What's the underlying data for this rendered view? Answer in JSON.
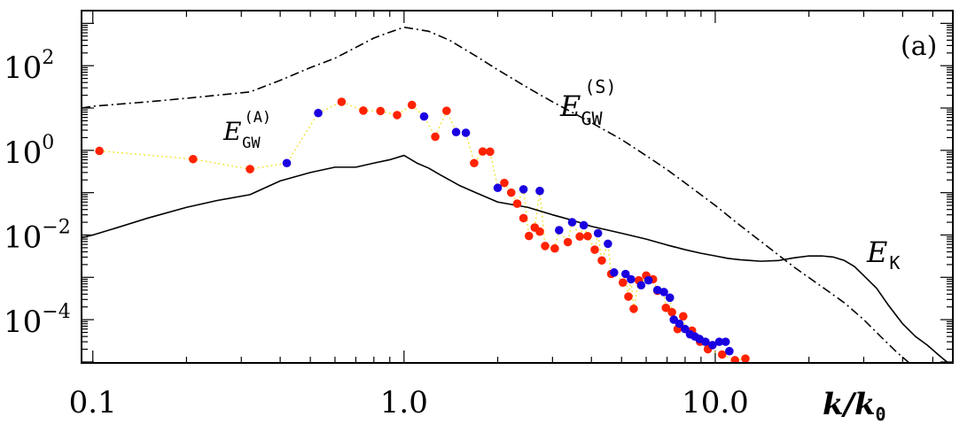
{
  "chart_data": {
    "type": "line",
    "panel_label": "(a)",
    "xlabel": {
      "main": "k",
      "sep": "/",
      "main2": "k",
      "sub": "0"
    },
    "xscale": "log",
    "yscale": "log",
    "xlim": [
      0.092,
      58
    ],
    "ylim": [
      9.5e-06,
      2000
    ],
    "x_ticks": [
      {
        "value": 0.1,
        "label": "0.1"
      },
      {
        "value": 1.0,
        "label": "1.0"
      },
      {
        "value": 10.0,
        "label": "10.0"
      }
    ],
    "y_ticks": [
      {
        "value": 100,
        "base": "10",
        "exp": "2"
      },
      {
        "value": 1,
        "base": "10",
        "exp": "0"
      },
      {
        "value": 0.01,
        "base": "10",
        "exp": "−2"
      },
      {
        "value": 0.0001,
        "base": "10",
        "exp": "−4"
      }
    ],
    "annotations": {
      "ek": {
        "main": "E",
        "sub": "K"
      },
      "egw_s": {
        "main": "E",
        "sub": "GW",
        "sup": "(S)"
      },
      "egw_a": {
        "main": "E",
        "sub": "GW",
        "sup": "(A)"
      }
    },
    "series": [
      {
        "key": "ek",
        "style": "solid",
        "color": "#000000",
        "x": [
          0.092,
          0.1,
          0.12,
          0.15,
          0.2,
          0.25,
          0.32,
          0.4,
          0.5,
          0.6,
          0.7,
          0.8,
          0.9,
          1.0,
          1.1,
          1.2,
          1.3,
          1.4,
          1.5,
          1.7,
          2.0,
          2.5,
          3.0,
          3.5,
          4.0,
          5.0,
          6.0,
          7.0,
          8.0,
          9.0,
          10.0,
          11.0,
          12.0,
          13.0,
          14.0,
          16.0,
          18.0,
          20.0,
          22.0,
          24.0,
          26.0,
          28.0,
          30.0,
          33.0,
          36.0,
          40.0,
          44.0,
          48.0,
          52.0,
          56.0
        ],
        "y": [
          0.0086,
          0.01,
          0.015,
          0.025,
          0.045,
          0.065,
          0.09,
          0.19,
          0.3,
          0.4,
          0.4,
          0.5,
          0.6,
          0.76,
          0.5,
          0.38,
          0.27,
          0.2,
          0.15,
          0.1,
          0.06,
          0.045,
          0.03,
          0.022,
          0.016,
          0.011,
          0.008,
          0.0058,
          0.0045,
          0.0037,
          0.0032,
          0.0028,
          0.0026,
          0.0025,
          0.0024,
          0.0025,
          0.0029,
          0.0032,
          0.0032,
          0.003,
          0.0025,
          0.0018,
          0.0011,
          0.00055,
          0.00022,
          8e-05,
          4e-05,
          2.5e-05,
          1.5e-05,
          9.5e-06
        ]
      },
      {
        "key": "egw_s",
        "style": "dashdot",
        "color": "#000000",
        "x": [
          0.092,
          0.1,
          0.15,
          0.2,
          0.25,
          0.32,
          0.4,
          0.5,
          0.6,
          0.7,
          0.8,
          0.9,
          1.0,
          1.2,
          1.4,
          1.7,
          2.0,
          2.5,
          3.0,
          4.0,
          5.0,
          6.0,
          7.0,
          8.0,
          10.0,
          12.0,
          15.0,
          18.0,
          22.0,
          26.0,
          30.0,
          34.0,
          38.0,
          42.0
        ],
        "y": [
          10,
          11,
          14,
          17,
          20,
          24,
          45,
          90,
          150,
          270,
          450,
          620,
          810,
          650,
          400,
          170,
          80,
          30,
          14,
          4.5,
          1.8,
          0.75,
          0.35,
          0.17,
          0.05,
          0.017,
          0.0048,
          0.0017,
          0.0006,
          0.00025,
          0.0001,
          4e-05,
          1.8e-05,
          9.5e-06
        ]
      },
      {
        "key": "egw_a_red",
        "style": "markers",
        "color": "#ff2200",
        "x": [
          0.105,
          0.21,
          0.32,
          0.63,
          0.74,
          0.84,
          0.95,
          1.06,
          1.26,
          1.37,
          1.68,
          1.79,
          1.89,
          2.1,
          2.21,
          2.31,
          2.42,
          2.52,
          2.63,
          2.73,
          2.84,
          3.05,
          3.36,
          3.67,
          3.89,
          4.1,
          4.32,
          4.63,
          5.05,
          5.26,
          5.47,
          5.68,
          6.0,
          6.31,
          6.52,
          6.94,
          7.26,
          7.57,
          7.89,
          8.42,
          8.94,
          9.47,
          10.52,
          11.57,
          12.5
        ],
        "y": [
          0.97,
          0.62,
          0.36,
          14.0,
          8.7,
          8.5,
          6.8,
          11.8,
          2.1,
          8.6,
          0.5,
          0.94,
          0.93,
          0.17,
          0.1,
          0.055,
          0.025,
          0.0095,
          0.015,
          0.012,
          0.0055,
          0.0048,
          0.0068,
          0.0092,
          0.0094,
          0.0045,
          0.0025,
          0.0012,
          0.00075,
          0.00035,
          0.00018,
          0.00085,
          0.0011,
          0.0009,
          0.00048,
          0.00019,
          0.00015,
          6e-05,
          0.00012,
          5.5e-05,
          3e-05,
          2e-05,
          1.5e-05,
          1.1e-05,
          1.2e-05
        ]
      },
      {
        "key": "egw_a_blue",
        "style": "markers",
        "color": "#1a00e0",
        "x": [
          0.42,
          0.53,
          1.16,
          1.47,
          1.58,
          2.0,
          2.42,
          2.73,
          3.15,
          3.47,
          3.78,
          4.2,
          4.52,
          4.73,
          5.15,
          5.36,
          5.78,
          6.1,
          6.52,
          6.84,
          7.15,
          7.36,
          7.67,
          8.0,
          8.3,
          8.6,
          8.9,
          9.3,
          9.8,
          10.3,
          10.8,
          11.1
        ],
        "y": [
          0.5,
          7.6,
          6.3,
          2.7,
          2.6,
          0.13,
          0.12,
          0.11,
          0.013,
          0.02,
          0.017,
          0.011,
          0.0062,
          0.0013,
          0.0012,
          0.0009,
          0.00065,
          0.00085,
          0.0005,
          0.00045,
          0.00033,
          0.0001,
          8e-05,
          6e-05,
          4.5e-05,
          4e-05,
          3.5e-05,
          3e-05,
          2.5e-05,
          3e-05,
          3e-05,
          1.8e-05
        ]
      },
      {
        "key": "egw_a_connector",
        "style": "dotted",
        "color": "#f4e640",
        "x": [
          0.105,
          0.21,
          0.32,
          0.42,
          0.53,
          0.63,
          0.74,
          0.84,
          0.95,
          1.06,
          1.16,
          1.26,
          1.37,
          1.47,
          1.58,
          1.68,
          1.79,
          1.89,
          2.0,
          2.1,
          2.21,
          2.31,
          2.42,
          2.52,
          2.63,
          2.73,
          2.84,
          3.05,
          3.15,
          3.36,
          3.47,
          3.67,
          3.78,
          3.89,
          4.1,
          4.2,
          4.32,
          4.52,
          4.63,
          4.73,
          5.05,
          5.15,
          5.26,
          5.36,
          5.47,
          5.68,
          5.78,
          6.0,
          6.1,
          6.31,
          6.52,
          6.84,
          6.94,
          7.15,
          7.26,
          7.36,
          7.57,
          7.67,
          7.89,
          8.0,
          8.42,
          8.94,
          9.47,
          10.52,
          11.57,
          12.5
        ],
        "y": [
          0.97,
          0.62,
          0.36,
          0.5,
          7.6,
          14.0,
          8.7,
          8.5,
          6.8,
          11.8,
          6.3,
          2.1,
          8.6,
          2.7,
          2.6,
          0.5,
          0.94,
          0.93,
          0.13,
          0.17,
          0.1,
          0.055,
          0.12,
          0.0095,
          0.015,
          0.11,
          0.0055,
          0.0048,
          0.013,
          0.0068,
          0.02,
          0.0092,
          0.017,
          0.0094,
          0.0045,
          0.011,
          0.0025,
          0.0062,
          0.0012,
          0.0013,
          0.00075,
          0.0012,
          0.00035,
          0.0009,
          0.00018,
          0.00085,
          0.00065,
          0.0011,
          0.00085,
          0.0009,
          0.0005,
          0.00045,
          0.00019,
          0.00033,
          0.00015,
          0.0001,
          6e-05,
          8e-05,
          0.00012,
          6e-05,
          5.5e-05,
          3e-05,
          2e-05,
          1.5e-05,
          1.1e-05,
          1.2e-05
        ]
      }
    ]
  }
}
